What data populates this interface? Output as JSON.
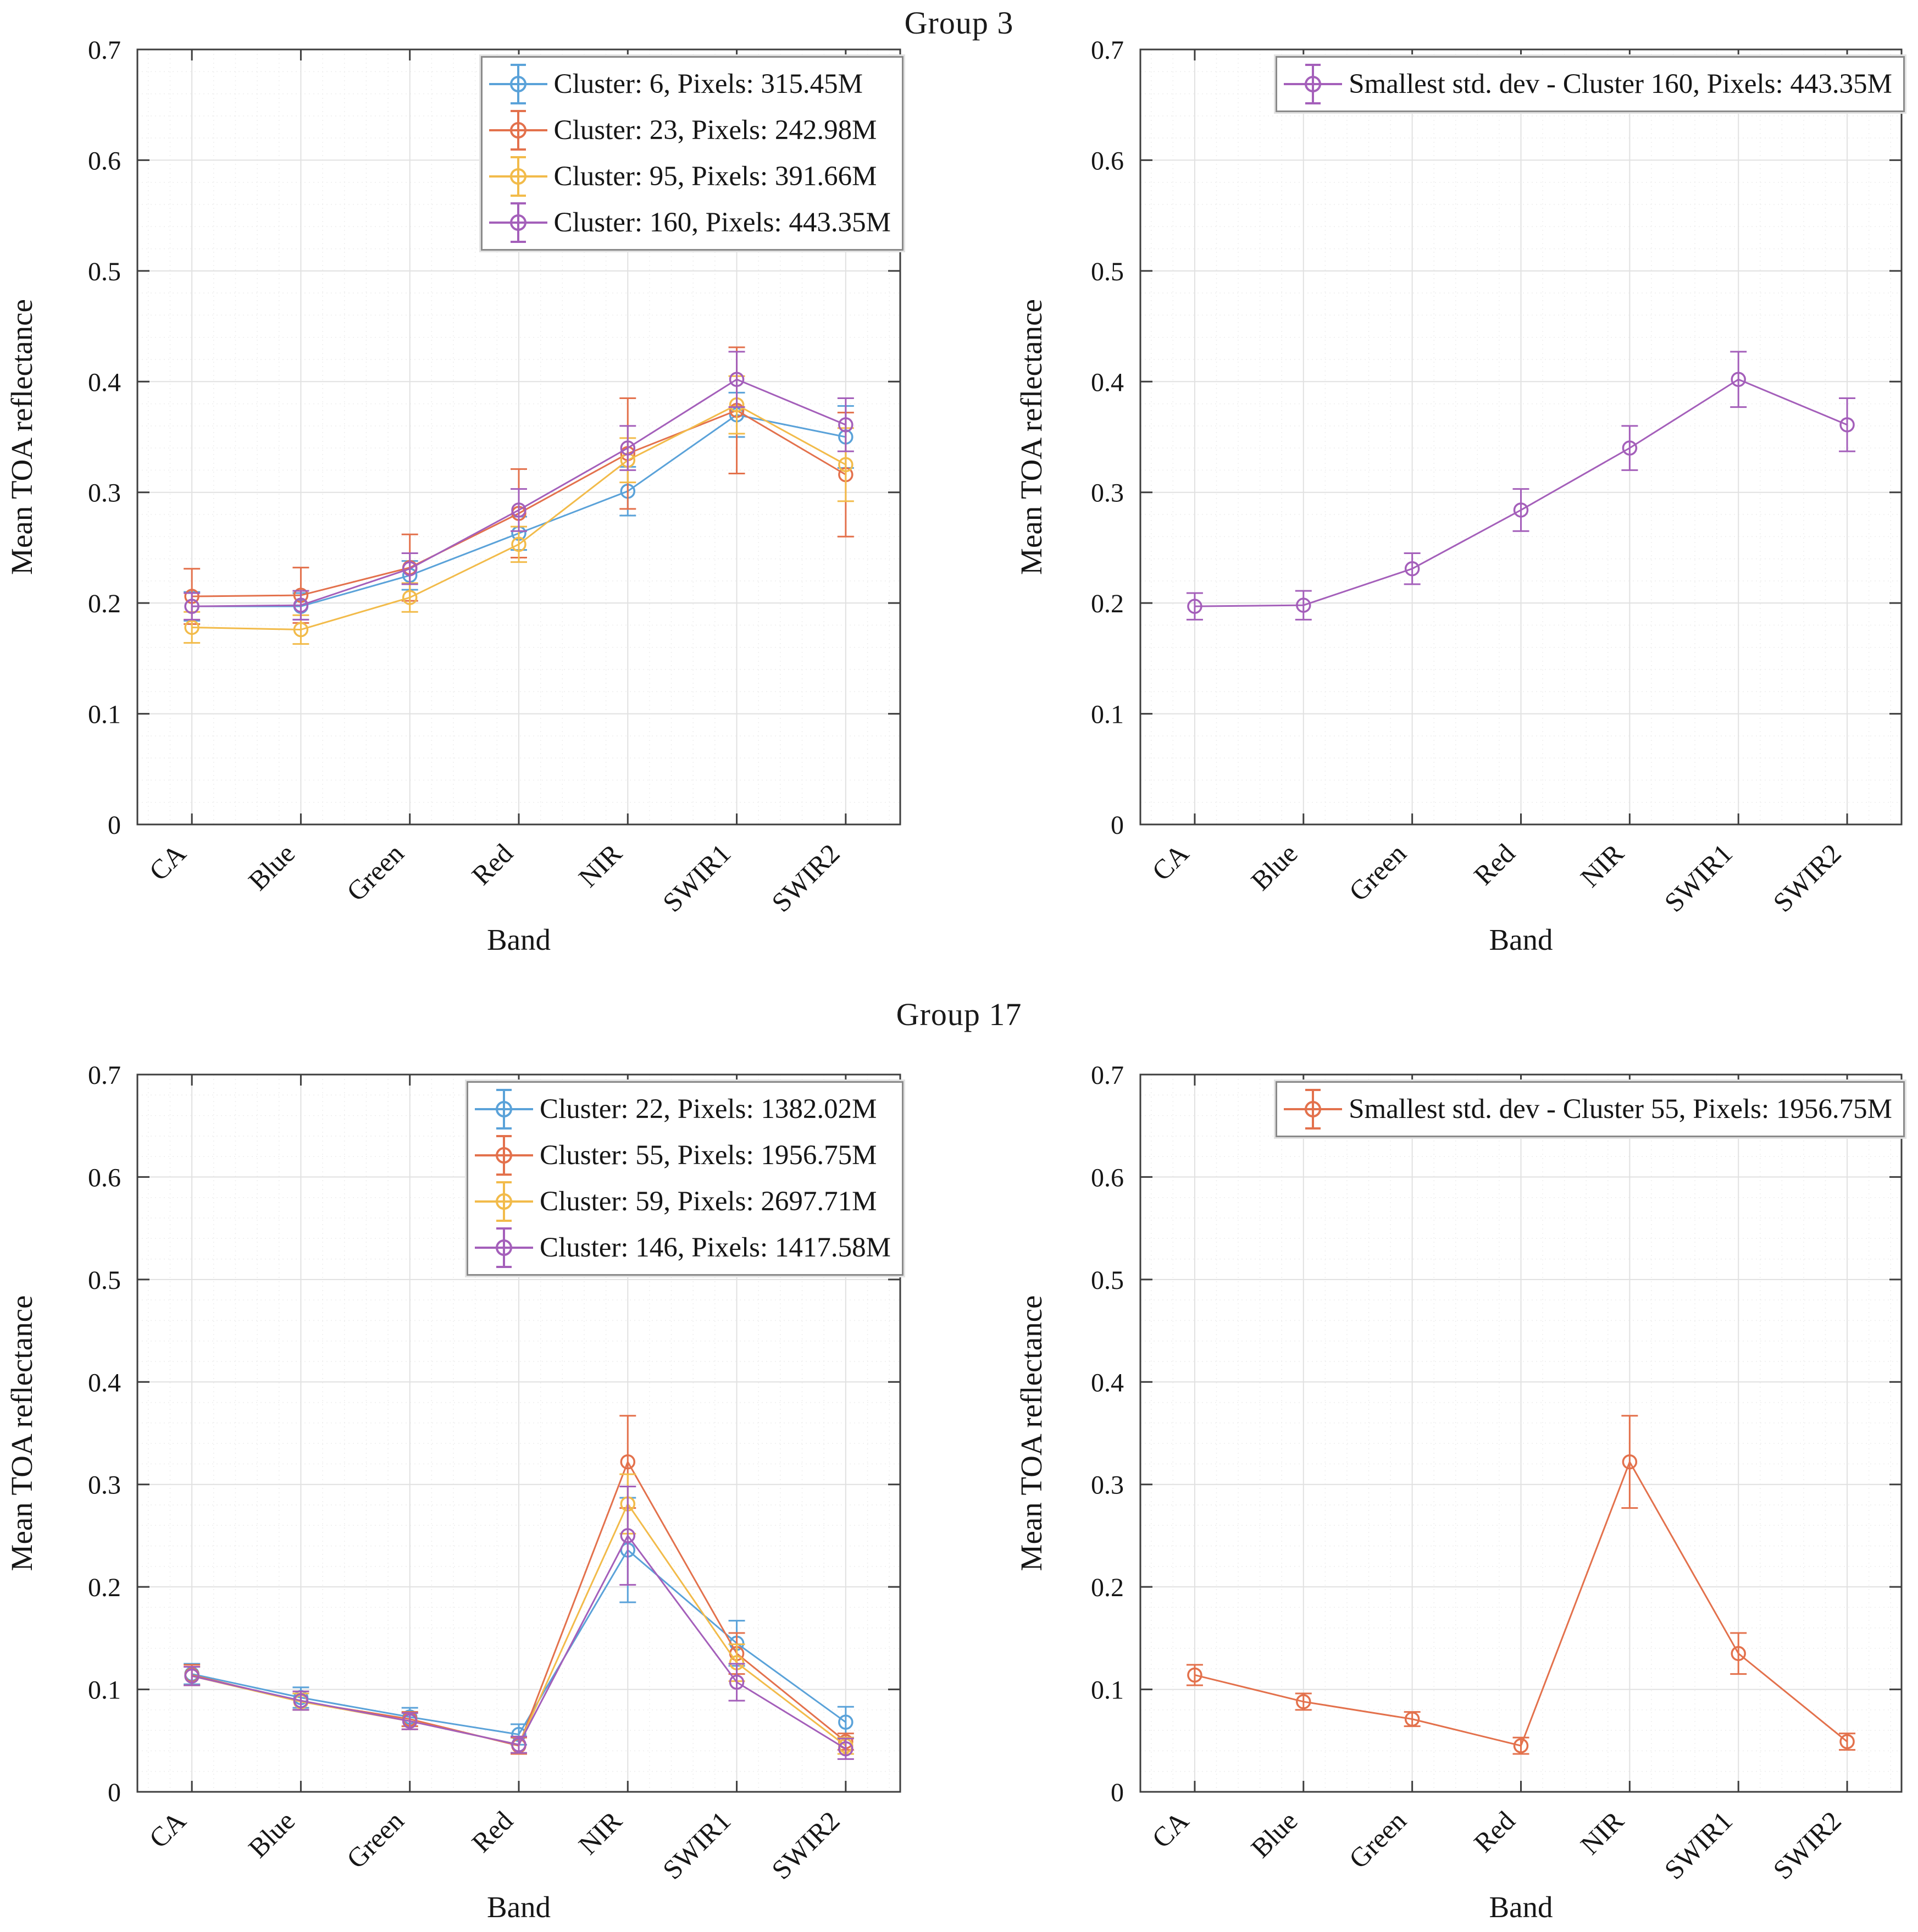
{
  "figure": {
    "suptitles": [
      "Group 3",
      "Group 17"
    ],
    "ylabel": "Mean TOA reflectance",
    "xlabel": "Band",
    "bands": [
      "CA",
      "Blue",
      "Green",
      "Red",
      "NIR",
      "SWIR1",
      "SWIR2"
    ],
    "ytick_labels": [
      "0",
      "0.1",
      "0.2",
      "0.3",
      "0.4",
      "0.5",
      "0.6",
      "0.7"
    ],
    "colors": {
      "blue": "#5AA2D9",
      "orange": "#E3714C",
      "yellow": "#F2BB4A",
      "purple": "#A45FBA"
    }
  },
  "chart_data": [
    {
      "type": "line",
      "title": "Group 3",
      "panel": "all-clusters",
      "xlabel": "Band",
      "ylabel": "Mean TOA reflectance",
      "categories": [
        "CA",
        "Blue",
        "Green",
        "Red",
        "NIR",
        "SWIR1",
        "SWIR2"
      ],
      "ylim": [
        0,
        0.7
      ],
      "ytick_labels": [
        "0",
        "0.1",
        "0.2",
        "0.3",
        "0.4",
        "0.5",
        "0.6",
        "0.7"
      ],
      "grid": "major+minor",
      "legend_position": "upper right",
      "series": [
        {
          "label": "Cluster: 6, Pixels: 315.45M",
          "color": "#5AA2D9",
          "values": [
            0.197,
            0.197,
            0.225,
            0.263,
            0.301,
            0.37,
            0.35
          ],
          "errors": [
            0.013,
            0.012,
            0.013,
            0.015,
            0.022,
            0.02,
            0.028
          ]
        },
        {
          "label": "Cluster: 23, Pixels: 242.98M",
          "color": "#E3714C",
          "values": [
            0.206,
            0.207,
            0.232,
            0.281,
            0.335,
            0.374,
            0.316
          ],
          "errors": [
            0.025,
            0.025,
            0.03,
            0.04,
            0.05,
            0.057,
            0.056
          ]
        },
        {
          "label": "Cluster: 95, Pixels: 391.66M",
          "color": "#F2BB4A",
          "values": [
            0.178,
            0.176,
            0.205,
            0.253,
            0.329,
            0.379,
            0.325
          ],
          "errors": [
            0.014,
            0.013,
            0.013,
            0.016,
            0.02,
            0.026,
            0.033
          ]
        },
        {
          "label": "Cluster: 160, Pixels: 443.35M",
          "color": "#A45FBA",
          "values": [
            0.197,
            0.198,
            0.231,
            0.284,
            0.34,
            0.402,
            0.361
          ],
          "errors": [
            0.012,
            0.013,
            0.014,
            0.019,
            0.02,
            0.025,
            0.024
          ]
        }
      ]
    },
    {
      "type": "line",
      "title": "Group 3",
      "panel": "smallest-std-dev",
      "xlabel": "Band",
      "ylabel": "Mean TOA reflectance",
      "categories": [
        "CA",
        "Blue",
        "Green",
        "Red",
        "NIR",
        "SWIR1",
        "SWIR2"
      ],
      "ylim": [
        0,
        0.7
      ],
      "ytick_labels": [
        "0",
        "0.1",
        "0.2",
        "0.3",
        "0.4",
        "0.5",
        "0.6",
        "0.7"
      ],
      "grid": "major+minor",
      "legend_position": "upper right",
      "series": [
        {
          "label": "Smallest std. dev - Cluster 160, Pixels: 443.35M",
          "color": "#A45FBA",
          "values": [
            0.197,
            0.198,
            0.231,
            0.284,
            0.34,
            0.402,
            0.361
          ],
          "errors": [
            0.012,
            0.013,
            0.014,
            0.019,
            0.02,
            0.025,
            0.024
          ]
        }
      ]
    },
    {
      "type": "line",
      "title": "Group 17",
      "panel": "all-clusters",
      "xlabel": "Band",
      "ylabel": "Mean TOA reflectance",
      "categories": [
        "CA",
        "Blue",
        "Green",
        "Red",
        "NIR",
        "SWIR1",
        "SWIR2"
      ],
      "ylim": [
        0,
        0.7
      ],
      "ytick_labels": [
        "0",
        "0.1",
        "0.2",
        "0.3",
        "0.4",
        "0.5",
        "0.6",
        "0.7"
      ],
      "grid": "major+minor",
      "legend_position": "upper right",
      "series": [
        {
          "label": "Cluster: 22, Pixels: 1382.02M",
          "color": "#5AA2D9",
          "values": [
            0.115,
            0.092,
            0.073,
            0.056,
            0.236,
            0.145,
            0.068
          ],
          "errors": [
            0.01,
            0.01,
            0.009,
            0.01,
            0.051,
            0.022,
            0.015
          ]
        },
        {
          "label": "Cluster: 55, Pixels: 1956.75M",
          "color": "#E3714C",
          "values": [
            0.114,
            0.088,
            0.071,
            0.045,
            0.322,
            0.135,
            0.049
          ],
          "errors": [
            0.01,
            0.008,
            0.007,
            0.008,
            0.045,
            0.02,
            0.008
          ]
        },
        {
          "label": "Cluster: 59, Pixels: 2697.71M",
          "color": "#F2BB4A",
          "values": [
            0.113,
            0.088,
            0.069,
            0.046,
            0.281,
            0.126,
            0.045
          ],
          "errors": [
            0.009,
            0.008,
            0.008,
            0.008,
            0.029,
            0.018,
            0.008
          ]
        },
        {
          "label": "Cluster: 146, Pixels: 1417.58M",
          "color": "#A45FBA",
          "values": [
            0.113,
            0.089,
            0.069,
            0.046,
            0.25,
            0.107,
            0.042
          ],
          "errors": [
            0.009,
            0.009,
            0.008,
            0.008,
            0.048,
            0.018,
            0.01
          ]
        }
      ]
    },
    {
      "type": "line",
      "title": "Group 17",
      "panel": "smallest-std-dev",
      "xlabel": "Band",
      "ylabel": "Mean TOA reflectance",
      "categories": [
        "CA",
        "Blue",
        "Green",
        "Red",
        "NIR",
        "SWIR1",
        "SWIR2"
      ],
      "ylim": [
        0,
        0.7
      ],
      "ytick_labels": [
        "0",
        "0.1",
        "0.2",
        "0.3",
        "0.4",
        "0.5",
        "0.6",
        "0.7"
      ],
      "grid": "major+minor",
      "legend_position": "upper right",
      "series": [
        {
          "label": "Smallest std. dev - Cluster 55, Pixels: 1956.75M",
          "color": "#E3714C",
          "values": [
            0.114,
            0.088,
            0.071,
            0.045,
            0.322,
            0.135,
            0.049
          ],
          "errors": [
            0.01,
            0.008,
            0.007,
            0.008,
            0.045,
            0.02,
            0.008
          ]
        }
      ]
    }
  ]
}
